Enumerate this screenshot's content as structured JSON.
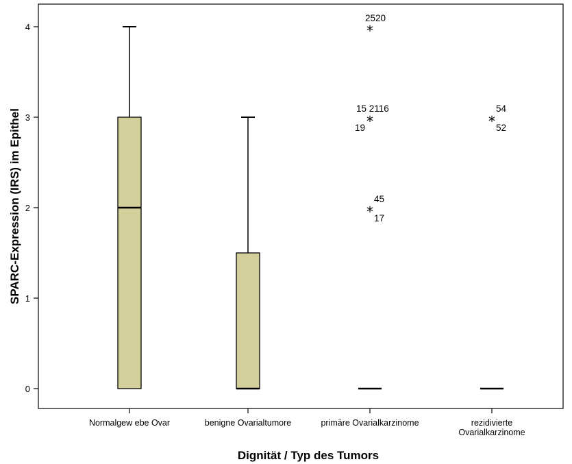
{
  "chart_data": {
    "type": "boxplot",
    "xlabel": "Dignität / Typ des Tumors",
    "ylabel": "SPARC-Expression (IRS) im Epithel",
    "ylim": [
      0,
      4
    ],
    "yticks": [
      "0",
      "1",
      "2",
      "3",
      "4"
    ],
    "categories": [
      [
        "Normalgew ebe Ovar"
      ],
      [
        "benigne Ovarialtumore"
      ],
      [
        "primäre Ovarialkarzinome"
      ],
      [
        "rezidivierte",
        "Ovarialkarzinome"
      ]
    ],
    "box_color": "#d4d09b",
    "boxes": [
      {
        "min": 0,
        "q1": 0,
        "median": 2,
        "q3": 3,
        "max": 4,
        "outliers": []
      },
      {
        "min": 0,
        "q1": 0,
        "median": 0,
        "q3": 1.5,
        "max": 3,
        "outliers": []
      },
      {
        "min": 0,
        "q1": 0,
        "median": 0,
        "q3": 0,
        "max": 0,
        "outliers": [
          {
            "value": 4,
            "labels": [
              "2520"
            ]
          },
          {
            "value": 3,
            "labels": [
              "15 2116",
              "19"
            ]
          },
          {
            "value": 2,
            "labels": [
              "45",
              "17"
            ]
          }
        ]
      },
      {
        "min": 0,
        "q1": 0,
        "median": 0,
        "q3": 0,
        "max": 0,
        "outliers": [
          {
            "value": 3,
            "labels": [
              "54",
              "52"
            ]
          }
        ]
      }
    ]
  }
}
